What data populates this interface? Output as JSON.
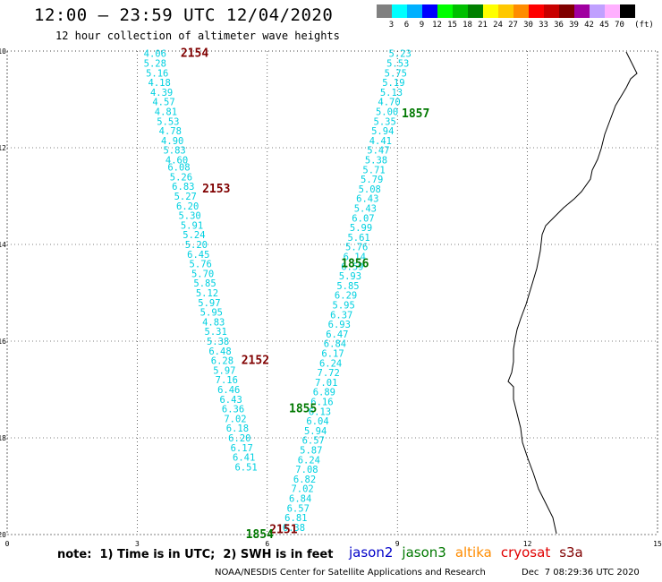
{
  "header": {
    "title": "12:00 – 23:59 UTC 12/04/2020",
    "subtitle": "12 hour collection of altimeter wave heights"
  },
  "colorbar": {
    "labels": [
      "3",
      "6",
      "9",
      "12",
      "15",
      "18",
      "21",
      "24",
      "27",
      "30",
      "33",
      "36",
      "39",
      "42",
      "45",
      "70"
    ],
    "unit": "(ft)",
    "colors": [
      "#808080",
      "#00ffff",
      "#00b0ff",
      "#0000ff",
      "#00ff00",
      "#00c000",
      "#008000",
      "#ffff00",
      "#ffc800",
      "#ff8c00",
      "#ff0000",
      "#c80000",
      "#800000",
      "#a000a0",
      "#c0a0ff",
      "#ffb0ff",
      "#000000"
    ]
  },
  "axes": {
    "x_ticks": [
      "0",
      "3",
      "6",
      "9",
      "12",
      "15"
    ],
    "y_ticks": [
      "-10",
      "-12",
      "-14",
      "-16",
      "-18",
      "-20"
    ],
    "x_range": [
      0,
      15
    ],
    "y_range": [
      -20,
      -10
    ]
  },
  "passes": [
    {
      "label": "2154",
      "color": "#800000",
      "lon": 4.0,
      "lat": -10.05
    },
    {
      "label": "2153",
      "color": "#800000",
      "lon": 4.5,
      "lat": -12.85
    },
    {
      "label": "2152",
      "color": "#800000",
      "lon": 5.4,
      "lat": -16.4
    },
    {
      "label": "2151",
      "color": "#800000",
      "lon": 6.05,
      "lat": -19.9
    },
    {
      "label": "1857",
      "color": "#007800",
      "lon": 9.1,
      "lat": -11.3
    },
    {
      "label": "1856",
      "color": "#007800",
      "lon": 7.7,
      "lat": -14.4
    },
    {
      "label": "1855",
      "color": "#007800",
      "lon": 6.5,
      "lat": -17.4
    },
    {
      "label": "1854",
      "color": "#007800",
      "lon": 5.5,
      "lat": -20.0
    }
  ],
  "track_west": [
    {
      "v": "4.06",
      "lon": 3.15,
      "lat": -10.05
    },
    {
      "v": "5.28",
      "lon": 3.15,
      "lat": -10.25
    },
    {
      "v": "5.16",
      "lon": 3.2,
      "lat": -10.45
    },
    {
      "v": "4.18",
      "lon": 3.25,
      "lat": -10.65
    },
    {
      "v": "4.39",
      "lon": 3.3,
      "lat": -10.85
    },
    {
      "v": "4.57",
      "lon": 3.35,
      "lat": -11.05
    },
    {
      "v": "4.81",
      "lon": 3.4,
      "lat": -11.25
    },
    {
      "v": "5.53",
      "lon": 3.45,
      "lat": -11.45
    },
    {
      "v": "4.78",
      "lon": 3.5,
      "lat": -11.65
    },
    {
      "v": "4.90",
      "lon": 3.55,
      "lat": -11.85
    },
    {
      "v": "5.83",
      "lon": 3.6,
      "lat": -12.05
    },
    {
      "v": "4.60",
      "lon": 3.65,
      "lat": -12.25
    },
    {
      "v": "6.08",
      "lon": 3.7,
      "lat": -12.4
    },
    {
      "v": "5.26",
      "lon": 3.75,
      "lat": -12.6
    },
    {
      "v": "6.83",
      "lon": 3.8,
      "lat": -12.8
    },
    {
      "v": "5.27",
      "lon": 3.85,
      "lat": -13.0
    },
    {
      "v": "6.20",
      "lon": 3.9,
      "lat": -13.2
    },
    {
      "v": "5.30",
      "lon": 3.95,
      "lat": -13.4
    },
    {
      "v": "5.91",
      "lon": 4.0,
      "lat": -13.6
    },
    {
      "v": "5.24",
      "lon": 4.05,
      "lat": -13.8
    },
    {
      "v": "5.20",
      "lon": 4.1,
      "lat": -14.0
    },
    {
      "v": "6.45",
      "lon": 4.15,
      "lat": -14.2
    },
    {
      "v": "5.76",
      "lon": 4.2,
      "lat": -14.4
    },
    {
      "v": "5.70",
      "lon": 4.25,
      "lat": -14.6
    },
    {
      "v": "5.85",
      "lon": 4.3,
      "lat": -14.8
    },
    {
      "v": "5.12",
      "lon": 4.35,
      "lat": -15.0
    },
    {
      "v": "5.97",
      "lon": 4.4,
      "lat": -15.2
    },
    {
      "v": "5.95",
      "lon": 4.45,
      "lat": -15.4
    },
    {
      "v": "4.83",
      "lon": 4.5,
      "lat": -15.6
    },
    {
      "v": "5.31",
      "lon": 4.55,
      "lat": -15.8
    },
    {
      "v": "5.38",
      "lon": 4.6,
      "lat": -16.0
    },
    {
      "v": "6.48",
      "lon": 4.65,
      "lat": -16.2
    },
    {
      "v": "6.28",
      "lon": 4.7,
      "lat": -16.4
    },
    {
      "v": "5.97",
      "lon": 4.75,
      "lat": -16.6
    },
    {
      "v": "7.16",
      "lon": 4.8,
      "lat": -16.8
    },
    {
      "v": "6.46",
      "lon": 4.85,
      "lat": -17.0
    },
    {
      "v": "6.43",
      "lon": 4.9,
      "lat": -17.2
    },
    {
      "v": "6.36",
      "lon": 4.95,
      "lat": -17.4
    },
    {
      "v": "7.02",
      "lon": 5.0,
      "lat": -17.6
    },
    {
      "v": "6.18",
      "lon": 5.05,
      "lat": -17.8
    },
    {
      "v": "6.20",
      "lon": 5.1,
      "lat": -18.0
    },
    {
      "v": "6.17",
      "lon": 5.15,
      "lat": -18.2
    },
    {
      "v": "6.41",
      "lon": 5.2,
      "lat": -18.4
    },
    {
      "v": "6.51",
      "lon": 5.25,
      "lat": -18.6
    }
  ],
  "track_east": [
    {
      "v": "5.23",
      "lon": 8.8,
      "lat": -10.05
    },
    {
      "v": "5.53",
      "lon": 8.75,
      "lat": -10.25
    },
    {
      "v": "5.75",
      "lon": 8.7,
      "lat": -10.45
    },
    {
      "v": "5.19",
      "lon": 8.65,
      "lat": -10.65
    },
    {
      "v": "5.13",
      "lon": 8.6,
      "lat": -10.85
    },
    {
      "v": "4.70",
      "lon": 8.55,
      "lat": -11.05
    },
    {
      "v": "5.00",
      "lon": 8.5,
      "lat": -11.25
    },
    {
      "v": "5.35",
      "lon": 8.45,
      "lat": -11.45
    },
    {
      "v": "5.94",
      "lon": 8.4,
      "lat": -11.65
    },
    {
      "v": "4.41",
      "lon": 8.35,
      "lat": -11.85
    },
    {
      "v": "5.47",
      "lon": 8.3,
      "lat": -12.05
    },
    {
      "v": "5.38",
      "lon": 8.25,
      "lat": -12.25
    },
    {
      "v": "5.71",
      "lon": 8.2,
      "lat": -12.45
    },
    {
      "v": "5.79",
      "lon": 8.15,
      "lat": -12.65
    },
    {
      "v": "5.08",
      "lon": 8.1,
      "lat": -12.85
    },
    {
      "v": "6.43",
      "lon": 8.05,
      "lat": -13.05
    },
    {
      "v": "5.43",
      "lon": 8.0,
      "lat": -13.25
    },
    {
      "v": "6.07",
      "lon": 7.95,
      "lat": -13.45
    },
    {
      "v": "5.99",
      "lon": 7.9,
      "lat": -13.65
    },
    {
      "v": "5.61",
      "lon": 7.85,
      "lat": -13.85
    },
    {
      "v": "5.76",
      "lon": 7.8,
      "lat": -14.05
    },
    {
      "v": "6.14",
      "lon": 7.75,
      "lat": -14.25
    },
    {
      "v": "6.59",
      "lon": 7.7,
      "lat": -14.45
    },
    {
      "v": "5.93",
      "lon": 7.65,
      "lat": -14.65
    },
    {
      "v": "5.85",
      "lon": 7.6,
      "lat": -14.85
    },
    {
      "v": "6.29",
      "lon": 7.55,
      "lat": -15.05
    },
    {
      "v": "5.95",
      "lon": 7.5,
      "lat": -15.25
    },
    {
      "v": "6.37",
      "lon": 7.45,
      "lat": -15.45
    },
    {
      "v": "6.93",
      "lon": 7.4,
      "lat": -15.65
    },
    {
      "v": "6.47",
      "lon": 7.35,
      "lat": -15.85
    },
    {
      "v": "6.84",
      "lon": 7.3,
      "lat": -16.05
    },
    {
      "v": "6.17",
      "lon": 7.25,
      "lat": -16.25
    },
    {
      "v": "6.24",
      "lon": 7.2,
      "lat": -16.45
    },
    {
      "v": "7.72",
      "lon": 7.15,
      "lat": -16.65
    },
    {
      "v": "7.01",
      "lon": 7.1,
      "lat": -16.85
    },
    {
      "v": "6.89",
      "lon": 7.05,
      "lat": -17.05
    },
    {
      "v": "6.16",
      "lon": 7.0,
      "lat": -17.25
    },
    {
      "v": "6.13",
      "lon": 6.95,
      "lat": -17.45
    },
    {
      "v": "6.04",
      "lon": 6.9,
      "lat": -17.65
    },
    {
      "v": "5.94",
      "lon": 6.85,
      "lat": -17.85
    },
    {
      "v": "6.57",
      "lon": 6.8,
      "lat": -18.05
    },
    {
      "v": "5.87",
      "lon": 6.75,
      "lat": -18.25
    },
    {
      "v": "6.24",
      "lon": 6.7,
      "lat": -18.45
    },
    {
      "v": "7.08",
      "lon": 6.65,
      "lat": -18.65
    },
    {
      "v": "6.82",
      "lon": 6.6,
      "lat": -18.85
    },
    {
      "v": "7.02",
      "lon": 6.55,
      "lat": -19.05
    },
    {
      "v": "6.84",
      "lon": 6.5,
      "lat": -19.25
    },
    {
      "v": "6.57",
      "lon": 6.45,
      "lat": -19.45
    },
    {
      "v": "6.81",
      "lon": 6.4,
      "lat": -19.65
    },
    {
      "v": "6.38",
      "lon": 6.35,
      "lat": -19.85
    }
  ],
  "footer": {
    "note": "note:  1) Time is in UTC;  2) SWH is in feet",
    "satellites": [
      {
        "name": "jason2",
        "color": "#0000c8"
      },
      {
        "name": "jason3",
        "color": "#007800"
      },
      {
        "name": "altika",
        "color": "#ff8c00"
      },
      {
        "name": "cryosat",
        "color": "#e00000"
      },
      {
        "name": "s3a",
        "color": "#800000"
      }
    ],
    "credit": "NOAA/NESDIS Center for Satellite Applications and Research",
    "timestamp": "Dec  7 08:29:36 UTC 2020"
  }
}
